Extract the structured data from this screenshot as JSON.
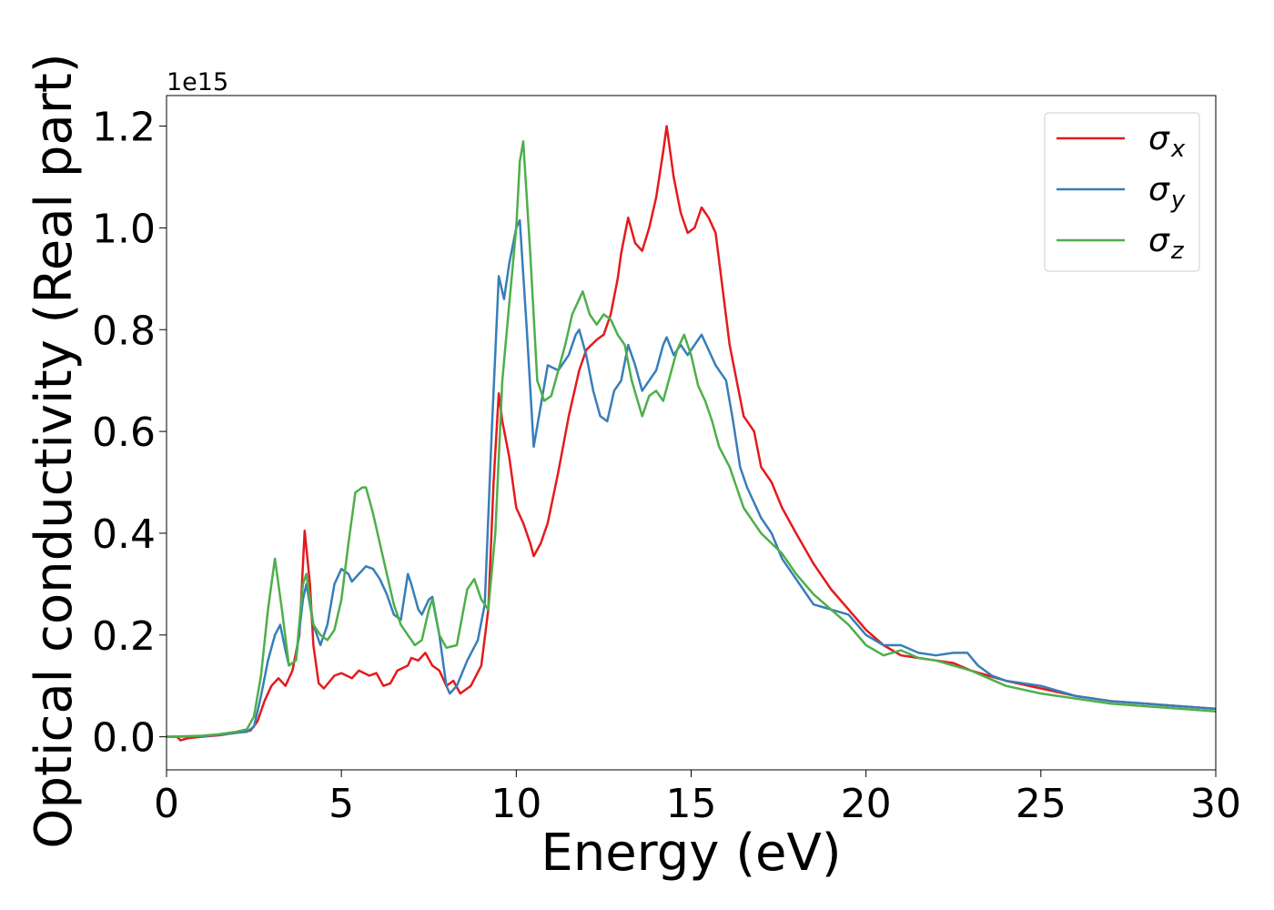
{
  "chart_data": {
    "type": "line",
    "xlabel": "Energy (eV)",
    "ylabel": "Optical conductivity (Real part)",
    "offset_label": "1e15",
    "xlim": [
      0,
      30
    ],
    "ylim": [
      -0.065,
      1.26
    ],
    "x_ticks": [
      0,
      5,
      10,
      15,
      20,
      25,
      30
    ],
    "y_ticks": [
      0.0,
      0.2,
      0.4,
      0.6,
      0.8,
      1.0,
      1.2
    ],
    "x_tick_labels": [
      "0",
      "5",
      "10",
      "15",
      "20",
      "25",
      "30"
    ],
    "y_tick_labels": [
      "0.0",
      "0.2",
      "0.4",
      "0.6",
      "0.8",
      "1.0",
      "1.2"
    ],
    "grid": false,
    "legend_position": "top-right",
    "series": [
      {
        "name": "σx",
        "legend_base": "σ",
        "legend_sub": "x",
        "color": "#e41a1c",
        "points": [
          [
            0,
            0
          ],
          [
            0.3,
            0
          ],
          [
            0.4,
            -0.007
          ],
          [
            0.6,
            -0.003
          ],
          [
            1.0,
            0
          ],
          [
            1.5,
            0.003
          ],
          [
            2.0,
            0.008
          ],
          [
            2.4,
            0.012
          ],
          [
            2.6,
            0.03
          ],
          [
            2.8,
            0.07
          ],
          [
            3.0,
            0.1
          ],
          [
            3.2,
            0.115
          ],
          [
            3.4,
            0.1
          ],
          [
            3.6,
            0.13
          ],
          [
            3.8,
            0.2
          ],
          [
            3.95,
            0.405
          ],
          [
            4.1,
            0.3
          ],
          [
            4.2,
            0.18
          ],
          [
            4.35,
            0.105
          ],
          [
            4.5,
            0.095
          ],
          [
            4.8,
            0.12
          ],
          [
            5.0,
            0.125
          ],
          [
            5.3,
            0.115
          ],
          [
            5.5,
            0.13
          ],
          [
            5.8,
            0.12
          ],
          [
            6.0,
            0.125
          ],
          [
            6.2,
            0.1
          ],
          [
            6.4,
            0.105
          ],
          [
            6.6,
            0.13
          ],
          [
            6.9,
            0.14
          ],
          [
            7.0,
            0.155
          ],
          [
            7.2,
            0.15
          ],
          [
            7.4,
            0.165
          ],
          [
            7.6,
            0.14
          ],
          [
            7.8,
            0.13
          ],
          [
            8.0,
            0.1
          ],
          [
            8.2,
            0.11
          ],
          [
            8.4,
            0.085
          ],
          [
            8.7,
            0.1
          ],
          [
            9.0,
            0.14
          ],
          [
            9.2,
            0.25
          ],
          [
            9.35,
            0.5
          ],
          [
            9.5,
            0.675
          ],
          [
            9.6,
            0.62
          ],
          [
            9.8,
            0.55
          ],
          [
            10.0,
            0.45
          ],
          [
            10.2,
            0.42
          ],
          [
            10.4,
            0.38
          ],
          [
            10.5,
            0.355
          ],
          [
            10.7,
            0.38
          ],
          [
            10.9,
            0.42
          ],
          [
            11.2,
            0.52
          ],
          [
            11.5,
            0.63
          ],
          [
            11.8,
            0.72
          ],
          [
            12.0,
            0.76
          ],
          [
            12.3,
            0.78
          ],
          [
            12.5,
            0.79
          ],
          [
            12.7,
            0.83
          ],
          [
            12.9,
            0.9
          ],
          [
            13.0,
            0.95
          ],
          [
            13.2,
            1.02
          ],
          [
            13.4,
            0.97
          ],
          [
            13.6,
            0.955
          ],
          [
            13.8,
            1.0
          ],
          [
            14.0,
            1.06
          ],
          [
            14.2,
            1.15
          ],
          [
            14.3,
            1.2
          ],
          [
            14.5,
            1.1
          ],
          [
            14.7,
            1.03
          ],
          [
            14.9,
            0.99
          ],
          [
            15.1,
            1.0
          ],
          [
            15.3,
            1.04
          ],
          [
            15.5,
            1.02
          ],
          [
            15.7,
            0.99
          ],
          [
            15.9,
            0.88
          ],
          [
            16.1,
            0.77
          ],
          [
            16.3,
            0.7
          ],
          [
            16.5,
            0.63
          ],
          [
            16.8,
            0.6
          ],
          [
            17.0,
            0.53
          ],
          [
            17.3,
            0.5
          ],
          [
            17.6,
            0.45
          ],
          [
            18.0,
            0.4
          ],
          [
            18.5,
            0.34
          ],
          [
            19.0,
            0.29
          ],
          [
            19.5,
            0.25
          ],
          [
            20.0,
            0.21
          ],
          [
            20.5,
            0.18
          ],
          [
            21.0,
            0.16
          ],
          [
            21.5,
            0.155
          ],
          [
            22.0,
            0.15
          ],
          [
            22.5,
            0.145
          ],
          [
            23.0,
            0.13
          ],
          [
            23.5,
            0.12
          ],
          [
            24.0,
            0.11
          ],
          [
            25.0,
            0.095
          ],
          [
            26.0,
            0.08
          ],
          [
            27.0,
            0.07
          ],
          [
            28.0,
            0.065
          ],
          [
            29.0,
            0.06
          ],
          [
            30.0,
            0.055
          ]
        ]
      },
      {
        "name": "σy",
        "legend_base": "σ",
        "legend_sub": "y",
        "color": "#377eb8",
        "points": [
          [
            0,
            0
          ],
          [
            1.0,
            0.001
          ],
          [
            1.5,
            0.004
          ],
          [
            2.0,
            0.008
          ],
          [
            2.3,
            0.01
          ],
          [
            2.5,
            0.02
          ],
          [
            2.7,
            0.08
          ],
          [
            2.9,
            0.15
          ],
          [
            3.1,
            0.2
          ],
          [
            3.25,
            0.22
          ],
          [
            3.4,
            0.17
          ],
          [
            3.5,
            0.14
          ],
          [
            3.7,
            0.15
          ],
          [
            3.9,
            0.27
          ],
          [
            4.0,
            0.3
          ],
          [
            4.2,
            0.22
          ],
          [
            4.4,
            0.18
          ],
          [
            4.6,
            0.22
          ],
          [
            4.8,
            0.3
          ],
          [
            5.0,
            0.33
          ],
          [
            5.2,
            0.32
          ],
          [
            5.3,
            0.305
          ],
          [
            5.5,
            0.32
          ],
          [
            5.7,
            0.335
          ],
          [
            5.9,
            0.33
          ],
          [
            6.1,
            0.31
          ],
          [
            6.3,
            0.28
          ],
          [
            6.5,
            0.24
          ],
          [
            6.7,
            0.23
          ],
          [
            6.9,
            0.32
          ],
          [
            7.0,
            0.3
          ],
          [
            7.2,
            0.25
          ],
          [
            7.3,
            0.24
          ],
          [
            7.5,
            0.27
          ],
          [
            7.6,
            0.275
          ],
          [
            7.8,
            0.2
          ],
          [
            8.0,
            0.1
          ],
          [
            8.1,
            0.085
          ],
          [
            8.3,
            0.1
          ],
          [
            8.6,
            0.15
          ],
          [
            8.9,
            0.19
          ],
          [
            9.1,
            0.26
          ],
          [
            9.3,
            0.6
          ],
          [
            9.5,
            0.905
          ],
          [
            9.65,
            0.86
          ],
          [
            9.8,
            0.93
          ],
          [
            10.0,
            1.0
          ],
          [
            10.1,
            1.015
          ],
          [
            10.3,
            0.8
          ],
          [
            10.5,
            0.57
          ],
          [
            10.7,
            0.65
          ],
          [
            10.9,
            0.73
          ],
          [
            11.2,
            0.72
          ],
          [
            11.5,
            0.75
          ],
          [
            11.7,
            0.79
          ],
          [
            11.8,
            0.8
          ],
          [
            12.0,
            0.75
          ],
          [
            12.2,
            0.68
          ],
          [
            12.4,
            0.63
          ],
          [
            12.6,
            0.62
          ],
          [
            12.8,
            0.68
          ],
          [
            13.0,
            0.7
          ],
          [
            13.2,
            0.77
          ],
          [
            13.4,
            0.73
          ],
          [
            13.6,
            0.68
          ],
          [
            13.8,
            0.7
          ],
          [
            14.0,
            0.72
          ],
          [
            14.2,
            0.77
          ],
          [
            14.3,
            0.785
          ],
          [
            14.5,
            0.75
          ],
          [
            14.7,
            0.77
          ],
          [
            14.9,
            0.75
          ],
          [
            15.1,
            0.77
          ],
          [
            15.3,
            0.79
          ],
          [
            15.5,
            0.76
          ],
          [
            15.7,
            0.73
          ],
          [
            16.0,
            0.7
          ],
          [
            16.2,
            0.62
          ],
          [
            16.4,
            0.53
          ],
          [
            16.6,
            0.49
          ],
          [
            16.8,
            0.46
          ],
          [
            17.0,
            0.43
          ],
          [
            17.3,
            0.4
          ],
          [
            17.6,
            0.35
          ],
          [
            18.0,
            0.31
          ],
          [
            18.5,
            0.26
          ],
          [
            19.0,
            0.25
          ],
          [
            19.5,
            0.24
          ],
          [
            20.0,
            0.2
          ],
          [
            20.5,
            0.18
          ],
          [
            21.0,
            0.18
          ],
          [
            21.5,
            0.165
          ],
          [
            22.0,
            0.16
          ],
          [
            22.5,
            0.165
          ],
          [
            22.9,
            0.165
          ],
          [
            23.2,
            0.14
          ],
          [
            23.6,
            0.12
          ],
          [
            24.0,
            0.11
          ],
          [
            25.0,
            0.1
          ],
          [
            26.0,
            0.08
          ],
          [
            27.0,
            0.07
          ],
          [
            28.0,
            0.065
          ],
          [
            29.0,
            0.06
          ],
          [
            30.0,
            0.055
          ]
        ]
      },
      {
        "name": "σz",
        "legend_base": "σ",
        "legend_sub": "z",
        "color": "#4daf4a",
        "points": [
          [
            0,
            0
          ],
          [
            1.0,
            0.002
          ],
          [
            1.5,
            0.005
          ],
          [
            2.0,
            0.01
          ],
          [
            2.3,
            0.015
          ],
          [
            2.5,
            0.04
          ],
          [
            2.7,
            0.12
          ],
          [
            2.9,
            0.25
          ],
          [
            3.1,
            0.35
          ],
          [
            3.3,
            0.25
          ],
          [
            3.5,
            0.14
          ],
          [
            3.7,
            0.15
          ],
          [
            3.9,
            0.3
          ],
          [
            4.0,
            0.32
          ],
          [
            4.2,
            0.22
          ],
          [
            4.4,
            0.2
          ],
          [
            4.6,
            0.19
          ],
          [
            4.8,
            0.21
          ],
          [
            5.0,
            0.27
          ],
          [
            5.2,
            0.38
          ],
          [
            5.4,
            0.48
          ],
          [
            5.6,
            0.49
          ],
          [
            5.7,
            0.49
          ],
          [
            5.9,
            0.44
          ],
          [
            6.1,
            0.38
          ],
          [
            6.3,
            0.32
          ],
          [
            6.5,
            0.26
          ],
          [
            6.7,
            0.22
          ],
          [
            6.9,
            0.2
          ],
          [
            7.1,
            0.18
          ],
          [
            7.3,
            0.19
          ],
          [
            7.5,
            0.25
          ],
          [
            7.6,
            0.27
          ],
          [
            7.8,
            0.2
          ],
          [
            8.0,
            0.175
          ],
          [
            8.3,
            0.18
          ],
          [
            8.6,
            0.29
          ],
          [
            8.8,
            0.31
          ],
          [
            9.0,
            0.27
          ],
          [
            9.2,
            0.25
          ],
          [
            9.4,
            0.4
          ],
          [
            9.6,
            0.7
          ],
          [
            9.8,
            0.85
          ],
          [
            10.0,
            1.0
          ],
          [
            10.1,
            1.13
          ],
          [
            10.2,
            1.17
          ],
          [
            10.4,
            0.95
          ],
          [
            10.6,
            0.7
          ],
          [
            10.8,
            0.66
          ],
          [
            11.0,
            0.67
          ],
          [
            11.2,
            0.72
          ],
          [
            11.4,
            0.77
          ],
          [
            11.6,
            0.83
          ],
          [
            11.8,
            0.86
          ],
          [
            11.9,
            0.875
          ],
          [
            12.1,
            0.83
          ],
          [
            12.3,
            0.81
          ],
          [
            12.5,
            0.83
          ],
          [
            12.7,
            0.82
          ],
          [
            12.9,
            0.79
          ],
          [
            13.1,
            0.77
          ],
          [
            13.3,
            0.7
          ],
          [
            13.6,
            0.63
          ],
          [
            13.8,
            0.67
          ],
          [
            14.0,
            0.68
          ],
          [
            14.2,
            0.66
          ],
          [
            14.4,
            0.71
          ],
          [
            14.6,
            0.76
          ],
          [
            14.8,
            0.79
          ],
          [
            15.0,
            0.75
          ],
          [
            15.2,
            0.69
          ],
          [
            15.4,
            0.66
          ],
          [
            15.6,
            0.62
          ],
          [
            15.8,
            0.57
          ],
          [
            16.1,
            0.53
          ],
          [
            16.3,
            0.49
          ],
          [
            16.5,
            0.45
          ],
          [
            16.8,
            0.42
          ],
          [
            17.0,
            0.4
          ],
          [
            17.3,
            0.38
          ],
          [
            17.6,
            0.36
          ],
          [
            18.0,
            0.32
          ],
          [
            18.5,
            0.28
          ],
          [
            19.0,
            0.25
          ],
          [
            19.5,
            0.22
          ],
          [
            20.0,
            0.18
          ],
          [
            20.5,
            0.16
          ],
          [
            21.0,
            0.17
          ],
          [
            21.5,
            0.155
          ],
          [
            22.0,
            0.15
          ],
          [
            22.5,
            0.14
          ],
          [
            23.0,
            0.13
          ],
          [
            23.5,
            0.115
          ],
          [
            24.0,
            0.1
          ],
          [
            25.0,
            0.085
          ],
          [
            26.0,
            0.075
          ],
          [
            27.0,
            0.065
          ],
          [
            28.0,
            0.06
          ],
          [
            29.0,
            0.055
          ],
          [
            30.0,
            0.05
          ]
        ]
      }
    ]
  }
}
